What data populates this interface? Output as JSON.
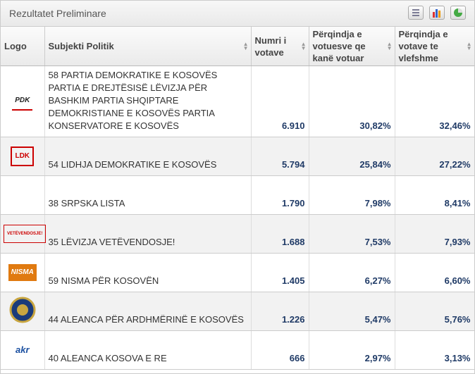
{
  "header": {
    "title": "Rezultatet Preliminare"
  },
  "table": {
    "columns": [
      "Logo",
      "Subjekti Politik",
      "Numri i votave",
      "Përqindja e votuesve qe kanë votuar",
      "Përqindja e votave te vlefshme"
    ],
    "rows": [
      {
        "logo": "PDK",
        "cells": [
          "58 PARTIA DEMOKRATIKE E KOSOVËS PARTIA E DREJTËSISË LËVIZJA PËR BASHKIM PARTIA SHQIPTARE DEMOKRISTIANE E KOSOVËS PARTIA KONSERVATORE E KOSOVËS",
          "6.910",
          "30,82%",
          "32,46%"
        ]
      },
      {
        "logo": "LDK",
        "cells": [
          "54 LIDHJA DEMOKRATIKE E KOSOVËS",
          "5.794",
          "25,84%",
          "27,22%"
        ]
      },
      {
        "cells": [
          "38 SRPSKA LISTA",
          "1.790",
          "7,98%",
          "8,41%"
        ]
      },
      {
        "logo": "VETËVENDOSJE!",
        "cells": [
          "35 LËVIZJA VETËVENDOSJE!",
          "1.688",
          "7,53%",
          "7,93%"
        ]
      },
      {
        "logo": "NISMA",
        "cells": [
          "59 NISMA PËR KOSOVËN",
          "1.405",
          "6,27%",
          "6,60%"
        ]
      },
      {
        "cells": [
          "44 ALEANCA PËR ARDHMËRINË E KOSOVËS",
          "1.226",
          "5,47%",
          "5,76%"
        ]
      },
      {
        "logo": "akr",
        "cells": [
          "40 ALEANCA KOSOVA E RE",
          "666",
          "2,97%",
          "3,13%"
        ]
      }
    ]
  }
}
